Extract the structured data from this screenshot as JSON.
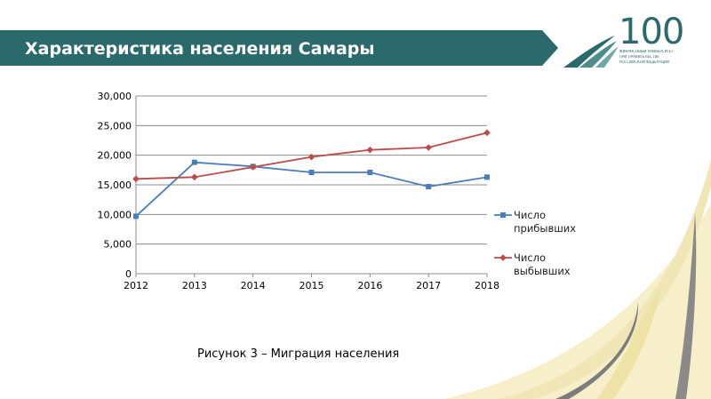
{
  "header": {
    "title": "Характеристика населения Самары",
    "band_color": "#2b6a6c"
  },
  "logo": {
    "number": "100",
    "line1": "ФИНАНСОВЫЙ УНИВЕРСИТЕТ",
    "line2": "ПРИ ПРАВИТЕЛЬСТВЕ",
    "line3": "РОССИЙСКОЙ ФЕДЕРАЦИИ",
    "color": "#2b6a6c"
  },
  "chart_data": {
    "type": "line",
    "x": [
      2012,
      2013,
      2014,
      2015,
      2016,
      2017,
      2018
    ],
    "x_tick_labels": [
      "2012",
      "2013",
      "2014",
      "2015",
      "2016",
      "2017",
      "2018"
    ],
    "y_tick_labels": [
      "0",
      "5,000",
      "10,000",
      "15,000",
      "20,000",
      "25,000",
      "30,000"
    ],
    "y_ticks": [
      0,
      5000,
      10000,
      15000,
      20000,
      25000,
      30000
    ],
    "ylim": [
      0,
      30000
    ],
    "grid": true,
    "legend_position": "right",
    "series": [
      {
        "name": "Число прибывших",
        "name_lines": [
          "Число",
          "прибывших"
        ],
        "color": "#4a7ebb",
        "marker": "square",
        "values": [
          9700,
          18800,
          18100,
          17100,
          17100,
          14700,
          16300
        ]
      },
      {
        "name": "Число выбывших",
        "name_lines": [
          "Число",
          "выбывших"
        ],
        "color": "#be4b48",
        "marker": "diamond",
        "values": [
          16000,
          16300,
          18000,
          19700,
          20900,
          21300,
          23800
        ]
      }
    ]
  },
  "caption": "Рисунок 3 – Миграция населения"
}
